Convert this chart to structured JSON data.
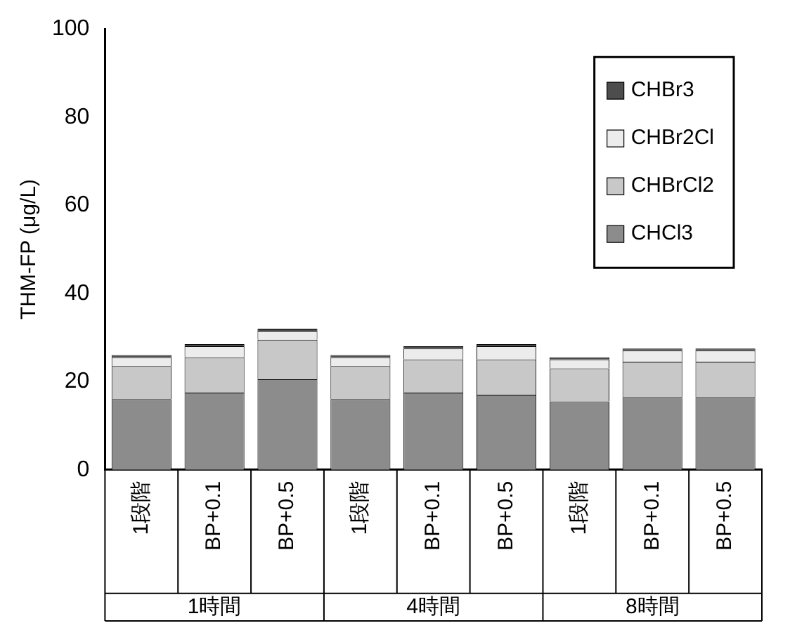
{
  "chart_data": {
    "type": "bar",
    "stacked": true,
    "ylabel": "THM-FP (μg/L)",
    "categories": [
      "1段階",
      "BP+0.1",
      "BP+0.5",
      "1段階",
      "BP+0.1",
      "BP+0.5",
      "1段階",
      "BP+0.1",
      "BP+0.5"
    ],
    "series": [
      {
        "name": "CHCl3",
        "color": "#8c8c8c",
        "values": [
          16,
          17.5,
          20.5,
          16,
          17.5,
          17,
          15.5,
          16.5,
          16.5
        ]
      },
      {
        "name": "CHBrCl2",
        "color": "#c8c8c8",
        "values": [
          7.5,
          8,
          9,
          7.5,
          7.5,
          8,
          7.5,
          8,
          8
        ]
      },
      {
        "name": "CHBr2Cl",
        "color": "#ececec",
        "values": [
          2,
          2.5,
          2,
          2,
          2.5,
          3,
          2,
          2.5,
          2.5
        ]
      },
      {
        "name": "CHBr3",
        "color": "#4d4d4d",
        "values": [
          0.5,
          0.5,
          0.5,
          0.5,
          0.5,
          0.5,
          0.5,
          0.5,
          0.5
        ]
      }
    ],
    "annotations": [
      "1時間",
      "4時間",
      "8時間"
    ],
    "ylim": [
      0,
      100
    ],
    "yticks": [
      0,
      20,
      40,
      60,
      80,
      100
    ],
    "grid": false,
    "legend": "top right"
  }
}
